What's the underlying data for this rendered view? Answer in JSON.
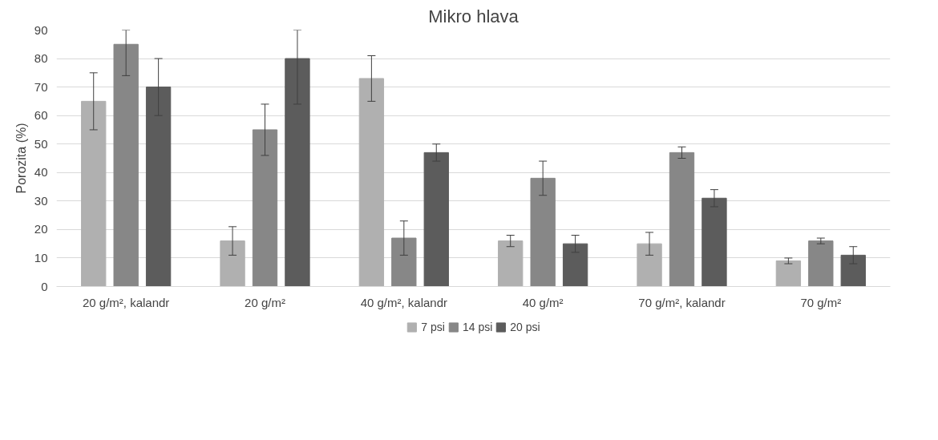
{
  "chart_data": {
    "type": "bar",
    "title": "Mikro hlava",
    "ylabel": "Porozita (%)",
    "categories": [
      "20 g/m², kalandr",
      "20 g/m²",
      "40 g/m², kalandr",
      "40 g/m²",
      "70 g/m², kalandr",
      "70 g/m²"
    ],
    "series": [
      {
        "name": "7 psi",
        "color": "#b0b0b0",
        "values": [
          65,
          16,
          73,
          16,
          15,
          9
        ],
        "errors": [
          [
            55,
            75
          ],
          [
            11,
            21
          ],
          [
            65,
            81
          ],
          [
            14,
            18
          ],
          [
            11,
            19
          ],
          [
            8,
            10
          ]
        ]
      },
      {
        "name": "14 psi",
        "color": "#878787",
        "values": [
          85,
          55,
          17,
          38,
          47,
          16
        ],
        "errors": [
          [
            74,
            90
          ],
          [
            46,
            64
          ],
          [
            11,
            23
          ],
          [
            32,
            44
          ],
          [
            45,
            49
          ],
          [
            15,
            17
          ]
        ]
      },
      {
        "name": "20 psi",
        "color": "#5c5c5c",
        "values": [
          70,
          80,
          47,
          15,
          31,
          11
        ],
        "errors": [
          [
            60,
            80
          ],
          [
            64,
            90
          ],
          [
            44,
            50
          ],
          [
            12,
            18
          ],
          [
            28,
            34
          ],
          [
            8,
            14
          ]
        ]
      }
    ],
    "ylim": [
      0,
      90
    ],
    "yticks": [
      0,
      10,
      20,
      30,
      40,
      50,
      60,
      70,
      80,
      90
    ],
    "grid": "y",
    "legend": "bottom"
  }
}
